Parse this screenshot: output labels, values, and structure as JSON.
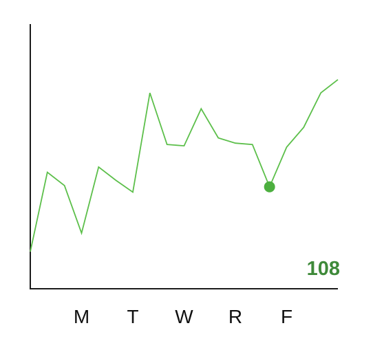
{
  "chart_data": {
    "type": "line",
    "title": "",
    "xlabel": "",
    "ylabel": "",
    "categories": [
      "M",
      "T",
      "W",
      "R",
      "F"
    ],
    "category_positions": [
      3,
      6,
      9,
      12,
      15
    ],
    "x": [
      0,
      1,
      2,
      3,
      4,
      5,
      6,
      7,
      8,
      9,
      10,
      11,
      12,
      13,
      14,
      15,
      16,
      17,
      18
    ],
    "xlim": [
      0,
      18
    ],
    "ylim": [
      0,
      200
    ],
    "series": [
      {
        "values": [
          28,
          88,
          78,
          42,
          92,
          82,
          73,
          148,
          109,
          108,
          136,
          114,
          110,
          109,
          77,
          107,
          122,
          148,
          158
        ],
        "color": "#5cbf4a"
      }
    ],
    "highlight": {
      "index": 14,
      "color": "#4caf3f"
    },
    "value_label": {
      "text": "108",
      "color": "#3f8a3a"
    },
    "grid": false,
    "legend": "none"
  }
}
